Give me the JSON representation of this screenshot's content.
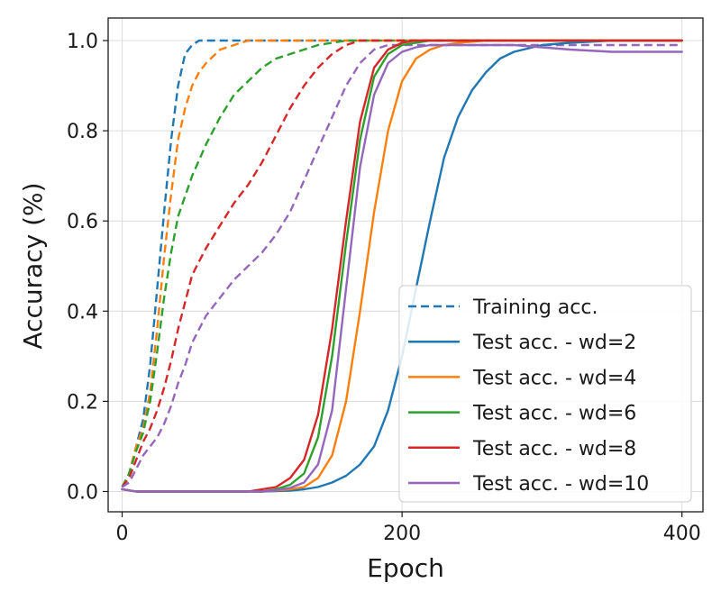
{
  "chart_data": {
    "type": "line",
    "title": "",
    "xlabel": "Epoch",
    "ylabel": "Accuracy (%)",
    "xlim": [
      -10,
      415
    ],
    "ylim": [
      -0.045,
      1.05
    ],
    "xticks": [
      0,
      200,
      400
    ],
    "xtick_labels": [
      "0",
      "200",
      "400"
    ],
    "yticks": [
      0.0,
      0.2,
      0.4,
      0.6,
      0.8,
      1.0
    ],
    "ytick_labels": [
      "0.0",
      "0.2",
      "0.4",
      "0.6",
      "0.8",
      "1.0"
    ],
    "grid": true,
    "legend_position": "lower-right",
    "legend": [
      {
        "label": "Training acc.",
        "color": "#1f77b4",
        "style": "dashed"
      },
      {
        "label": "Test acc. - wd=2",
        "color": "#1f77b4",
        "style": "solid"
      },
      {
        "label": "Test acc. - wd=4",
        "color": "#ff7f0e",
        "style": "solid"
      },
      {
        "label": "Test acc. - wd=6",
        "color": "#2ca02c",
        "style": "solid"
      },
      {
        "label": "Test acc. - wd=8",
        "color": "#d62728",
        "style": "solid"
      },
      {
        "label": "Test acc. - wd=10",
        "color": "#9467bd",
        "style": "solid"
      }
    ],
    "series": [
      {
        "kind": "train",
        "color": "#1f77b4",
        "style": "dashed",
        "x": [
          0,
          5,
          10,
          15,
          20,
          25,
          30,
          35,
          40,
          45,
          50,
          55,
          60,
          70,
          80,
          100,
          150,
          200,
          300,
          400
        ],
        "y": [
          0.01,
          0.04,
          0.1,
          0.16,
          0.28,
          0.45,
          0.62,
          0.78,
          0.9,
          0.97,
          0.99,
          1.0,
          1.0,
          1.0,
          1.0,
          1.0,
          1.0,
          1.0,
          1.0,
          1.0
        ]
      },
      {
        "kind": "train",
        "color": "#ff7f0e",
        "style": "dashed",
        "x": [
          0,
          5,
          10,
          15,
          20,
          25,
          30,
          35,
          40,
          45,
          50,
          55,
          60,
          70,
          80,
          90,
          100,
          120,
          150,
          200,
          300,
          400
        ],
        "y": [
          0.01,
          0.04,
          0.1,
          0.14,
          0.22,
          0.36,
          0.52,
          0.66,
          0.78,
          0.85,
          0.9,
          0.93,
          0.95,
          0.98,
          0.99,
          1.0,
          1.0,
          1.0,
          1.0,
          1.0,
          1.0,
          1.0
        ]
      },
      {
        "kind": "train",
        "color": "#2ca02c",
        "style": "dashed",
        "x": [
          0,
          5,
          10,
          15,
          20,
          25,
          30,
          35,
          40,
          50,
          60,
          70,
          80,
          90,
          100,
          110,
          120,
          130,
          140,
          150,
          160,
          180,
          200,
          300,
          400
        ],
        "y": [
          0.01,
          0.04,
          0.09,
          0.13,
          0.2,
          0.31,
          0.43,
          0.53,
          0.61,
          0.7,
          0.77,
          0.83,
          0.88,
          0.91,
          0.94,
          0.96,
          0.97,
          0.98,
          0.99,
          0.995,
          1.0,
          1.0,
          1.0,
          1.0,
          1.0
        ]
      },
      {
        "kind": "train",
        "color": "#d62728",
        "style": "dashed",
        "x": [
          0,
          5,
          10,
          15,
          20,
          25,
          30,
          35,
          40,
          45,
          50,
          55,
          60,
          70,
          80,
          90,
          100,
          110,
          120,
          130,
          140,
          150,
          160,
          170,
          180,
          200,
          250,
          300,
          400
        ],
        "y": [
          0.01,
          0.03,
          0.07,
          0.11,
          0.14,
          0.18,
          0.23,
          0.29,
          0.36,
          0.42,
          0.48,
          0.51,
          0.54,
          0.59,
          0.64,
          0.68,
          0.73,
          0.79,
          0.85,
          0.9,
          0.94,
          0.97,
          0.99,
          1.0,
          1.0,
          1.0,
          1.0,
          1.0,
          1.0
        ]
      },
      {
        "kind": "train",
        "color": "#9467bd",
        "style": "dashed",
        "x": [
          0,
          5,
          10,
          15,
          20,
          25,
          30,
          35,
          40,
          45,
          50,
          55,
          60,
          70,
          80,
          90,
          100,
          110,
          120,
          130,
          140,
          150,
          160,
          170,
          180,
          190,
          200,
          250,
          300,
          350,
          400
        ],
        "y": [
          0.01,
          0.02,
          0.05,
          0.08,
          0.1,
          0.12,
          0.15,
          0.19,
          0.24,
          0.28,
          0.33,
          0.36,
          0.39,
          0.43,
          0.47,
          0.5,
          0.53,
          0.57,
          0.62,
          0.69,
          0.76,
          0.83,
          0.9,
          0.95,
          0.98,
          0.99,
          0.99,
          0.99,
          0.99,
          0.99,
          0.99
        ]
      },
      {
        "kind": "test",
        "color": "#1f77b4",
        "style": "solid",
        "x": [
          0,
          10,
          50,
          100,
          120,
          130,
          140,
          150,
          160,
          170,
          180,
          190,
          200,
          210,
          220,
          230,
          240,
          250,
          260,
          270,
          280,
          300,
          320,
          350,
          400
        ],
        "y": [
          0.005,
          0.0,
          0.0,
          0.0,
          0.002,
          0.005,
          0.01,
          0.02,
          0.035,
          0.06,
          0.1,
          0.18,
          0.3,
          0.45,
          0.6,
          0.74,
          0.83,
          0.89,
          0.93,
          0.96,
          0.975,
          0.99,
          0.995,
          1.0,
          1.0
        ]
      },
      {
        "kind": "test",
        "color": "#ff7f0e",
        "style": "solid",
        "x": [
          0,
          10,
          50,
          100,
          120,
          130,
          140,
          150,
          160,
          170,
          180,
          190,
          200,
          210,
          220,
          230,
          240,
          260,
          300,
          400
        ],
        "y": [
          0.005,
          0.0,
          0.0,
          0.0,
          0.005,
          0.01,
          0.03,
          0.08,
          0.2,
          0.4,
          0.62,
          0.8,
          0.91,
          0.96,
          0.98,
          0.99,
          0.995,
          1.0,
          1.0,
          1.0
        ]
      },
      {
        "kind": "test",
        "color": "#2ca02c",
        "style": "solid",
        "x": [
          0,
          10,
          50,
          100,
          110,
          120,
          130,
          140,
          150,
          160,
          170,
          180,
          190,
          200,
          210,
          220,
          240,
          300,
          400
        ],
        "y": [
          0.005,
          0.0,
          0.0,
          0.0,
          0.005,
          0.015,
          0.04,
          0.12,
          0.3,
          0.55,
          0.78,
          0.92,
          0.97,
          0.99,
          0.995,
          1.0,
          1.0,
          1.0,
          1.0
        ]
      },
      {
        "kind": "test",
        "color": "#d62728",
        "style": "solid",
        "x": [
          0,
          10,
          50,
          90,
          100,
          110,
          120,
          130,
          140,
          150,
          160,
          170,
          180,
          190,
          200,
          210,
          220,
          240,
          300,
          400
        ],
        "y": [
          0.005,
          0.0,
          0.0,
          0.0,
          0.005,
          0.01,
          0.03,
          0.07,
          0.17,
          0.36,
          0.6,
          0.82,
          0.94,
          0.98,
          0.995,
          1.0,
          1.0,
          1.0,
          1.0,
          1.0
        ]
      },
      {
        "kind": "test",
        "color": "#9467bd",
        "style": "solid",
        "x": [
          0,
          10,
          50,
          100,
          110,
          120,
          130,
          140,
          150,
          160,
          170,
          180,
          190,
          200,
          210,
          220,
          240,
          260,
          280,
          300,
          320,
          350,
          400
        ],
        "y": [
          0.005,
          0.0,
          0.0,
          0.0,
          0.003,
          0.008,
          0.02,
          0.06,
          0.18,
          0.45,
          0.72,
          0.88,
          0.95,
          0.975,
          0.985,
          0.99,
          0.99,
          0.99,
          0.99,
          0.985,
          0.98,
          0.975,
          0.975
        ]
      }
    ]
  }
}
